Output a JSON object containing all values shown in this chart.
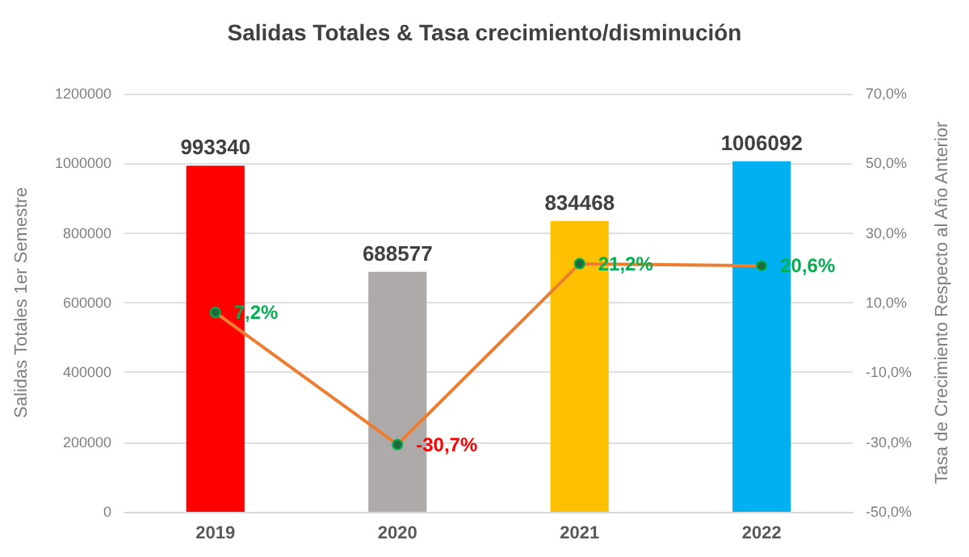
{
  "chart_data": {
    "type": "bar",
    "title": "Salidas Totales & Tasa crecimiento/disminución",
    "ylabel": "Salidas Totales 1er Semestre",
    "y2label": "Tasa de Crecimiento Respecto al Año Anterior",
    "categories": [
      "2019",
      "2020",
      "2021",
      "2022"
    ],
    "series": [
      {
        "colors": [
          "#ff0000",
          "#aeaaaa",
          "#ffc000",
          "#00b0f0"
        ],
        "values": [
          993340,
          688577,
          834468,
          1006092
        ],
        "value_labels": [
          "993340",
          "688577",
          "834468",
          "1006092"
        ]
      },
      {
        "type": "line",
        "axis": "y2",
        "color": "#ed7d31",
        "values": [
          7.2,
          -30.7,
          21.2,
          20.6
        ],
        "value_labels": [
          "7,2%",
          "-30,7%",
          "21,2%",
          "20,6%"
        ]
      }
    ],
    "ylim": [
      0,
      1200000
    ],
    "yticks": [
      0,
      200000,
      400000,
      600000,
      800000,
      1000000,
      1200000
    ],
    "y2lim": [
      -50,
      70
    ],
    "y2ticks": [
      {
        "value": -50,
        "label": "-50,0%"
      },
      {
        "value": -30,
        "label": "-30,0%"
      },
      {
        "value": -10,
        "label": "-10,0%"
      },
      {
        "value": 10,
        "label": "10,0%"
      },
      {
        "value": 30,
        "label": "30,0%"
      },
      {
        "value": 50,
        "label": "50,0%"
      },
      {
        "value": 70,
        "label": "70,0%"
      }
    ],
    "grid": "y",
    "marker": "circle"
  }
}
